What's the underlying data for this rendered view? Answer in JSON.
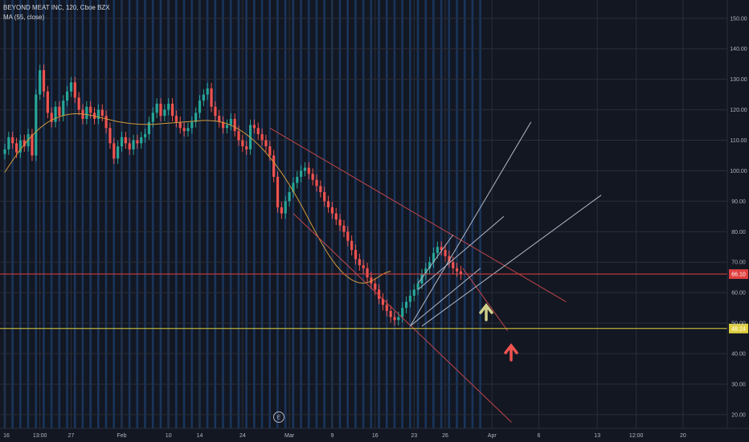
{
  "legend": {
    "symbol": "BEYOND MEAT INC, 120, Cboe BZX",
    "indicator": "MA (55, close)"
  },
  "colors": {
    "background": "#131722",
    "up": "#26a69a",
    "down": "#ef5350",
    "ma": "#d19a3b",
    "session_band": "#1f4e8c",
    "channel": "#c2454a",
    "fan": "#b0b8c8",
    "horizontal_red": "#e04040",
    "horizontal_yellow": "#e0d040",
    "arrow_up_yellow": "#cfcf8a",
    "arrow_up_red": "#ef5350"
  },
  "earnings_marker": "E",
  "chart_data": {
    "type": "candlestick",
    "title": "",
    "y_ticks": [
      150,
      140,
      130,
      120,
      110,
      100,
      90,
      80,
      70,
      60,
      50,
      40,
      30,
      20
    ],
    "y_tick_labels": [
      "150.00",
      "140.00",
      "130.00",
      "120.00",
      "110.00",
      "100.00",
      "90.00",
      "80.00",
      "70.00",
      "60.00",
      "50.00",
      "40.00",
      "30.00",
      "20.00"
    ],
    "ylim": [
      15.5,
      156
    ],
    "x_tick_labels": [
      {
        "label": "16",
        "bar": 0
      },
      {
        "label": "13:00",
        "bar": 9
      },
      {
        "label": "27",
        "bar": 17
      },
      {
        "label": "Feb",
        "bar": 30
      },
      {
        "label": "10",
        "bar": 42
      },
      {
        "label": "14",
        "bar": 50
      },
      {
        "label": "24",
        "bar": 61
      },
      {
        "label": "Mar",
        "bar": 73
      },
      {
        "label": "9",
        "bar": 84
      },
      {
        "label": "16",
        "bar": 95
      },
      {
        "label": "23",
        "bar": 105
      },
      {
        "label": "26",
        "bar": 113
      },
      {
        "label": "Apr",
        "bar": 125
      },
      {
        "label": "6",
        "bar": 137
      },
      {
        "label": "13",
        "bar": 152
      },
      {
        "label": "12:00",
        "bar": 162
      },
      {
        "label": "20",
        "bar": 174
      }
    ],
    "closes": [
      107,
      111,
      109,
      106,
      110,
      108,
      112,
      105,
      125,
      133,
      126,
      119,
      116,
      121,
      118,
      123,
      126,
      129,
      124,
      120,
      117,
      121,
      119,
      117,
      120,
      118,
      114,
      109,
      104,
      108,
      111,
      109,
      107,
      110,
      109,
      111,
      112,
      116,
      119,
      122,
      118,
      120,
      122,
      118,
      116,
      114,
      113,
      114,
      116,
      119,
      123,
      125,
      127,
      121,
      118,
      116,
      114,
      115,
      117,
      113,
      110,
      108,
      107,
      115,
      114,
      112,
      110,
      108,
      105,
      98,
      88,
      86,
      90,
      93,
      96,
      98,
      100,
      101,
      99,
      97,
      95,
      93,
      90,
      88,
      86,
      84,
      82,
      80,
      77,
      74,
      71,
      69,
      68,
      65,
      63,
      61,
      58,
      56,
      54,
      52,
      51,
      52,
      55,
      57,
      59,
      61,
      63,
      66,
      68,
      70,
      73,
      75,
      74,
      72,
      70,
      68,
      67,
      66
    ],
    "ma55": [
      99.5,
      101.5,
      103.4,
      105.2,
      107.0,
      108.6,
      110.1,
      111.5,
      112.8,
      114.0,
      115.0,
      115.9,
      116.6,
      117.2,
      117.7,
      118.1,
      118.4,
      118.6,
      118.7,
      118.7,
      118.6,
      118.4,
      118.2,
      117.9,
      117.6,
      117.3,
      117.0,
      116.7,
      116.4,
      116.1,
      115.9,
      115.7,
      115.5,
      115.4,
      115.3,
      115.2,
      115.2,
      115.2,
      115.2,
      115.3,
      115.4,
      115.5,
      115.6,
      115.7,
      115.8,
      115.9,
      116.0,
      116.1,
      116.2,
      116.3,
      116.4,
      116.5,
      116.5,
      116.4,
      116.3,
      116.1,
      115.8,
      115.4,
      114.9,
      114.3,
      113.6,
      112.8,
      111.9,
      110.9,
      109.8,
      108.6,
      107.3,
      105.9,
      104.4,
      102.8,
      101.1,
      99.3,
      97.4,
      95.4,
      93.3,
      91.1,
      88.8,
      86.4,
      84.0,
      81.6,
      79.2,
      76.9,
      74.7,
      72.6,
      70.7,
      69.0,
      67.5,
      66.2,
      65.1,
      64.2,
      63.6,
      63.2,
      63.1,
      63.3,
      63.8,
      64.5,
      65.3,
      66.1,
      66.7,
      67.0
    ],
    "horizontal_levels": [
      {
        "value": 66.1,
        "label": "66.10"
      },
      {
        "value": 48.24,
        "label": "48.24"
      }
    ],
    "grid": true
  }
}
